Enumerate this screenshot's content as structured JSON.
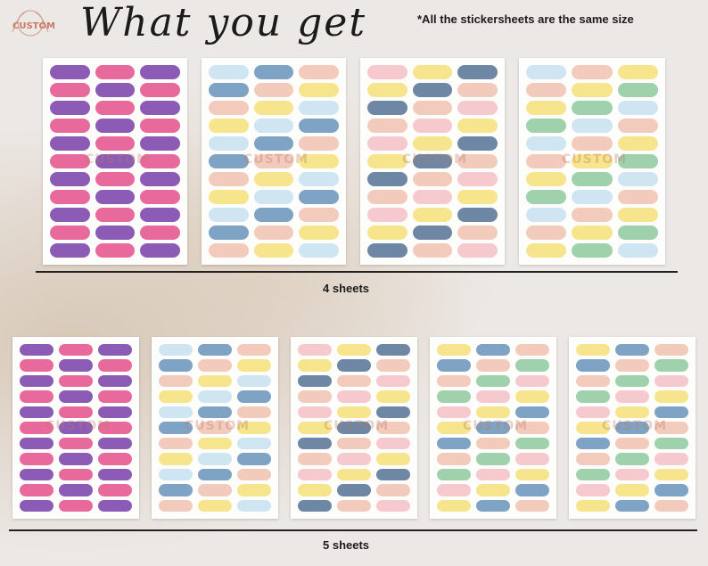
{
  "brand": {
    "name": "CUSTOM"
  },
  "header": {
    "title": "What you get",
    "note": "*All the stickersheets are the same size"
  },
  "rows": [
    {
      "label": "4 sheets"
    },
    {
      "label": "5 sheets"
    }
  ],
  "watermark": "CUSTOM",
  "colors": {
    "purple": "#8b5bb5",
    "pink": "#e86a9c",
    "blue": "#7fa3c4",
    "lightblue": "#cfe6f2",
    "peach": "#f3cbbd",
    "yellow": "#f6e58c",
    "green": "#9fd1ad",
    "rose": "#f6c9cf",
    "slate": "#6e87a4"
  }
}
